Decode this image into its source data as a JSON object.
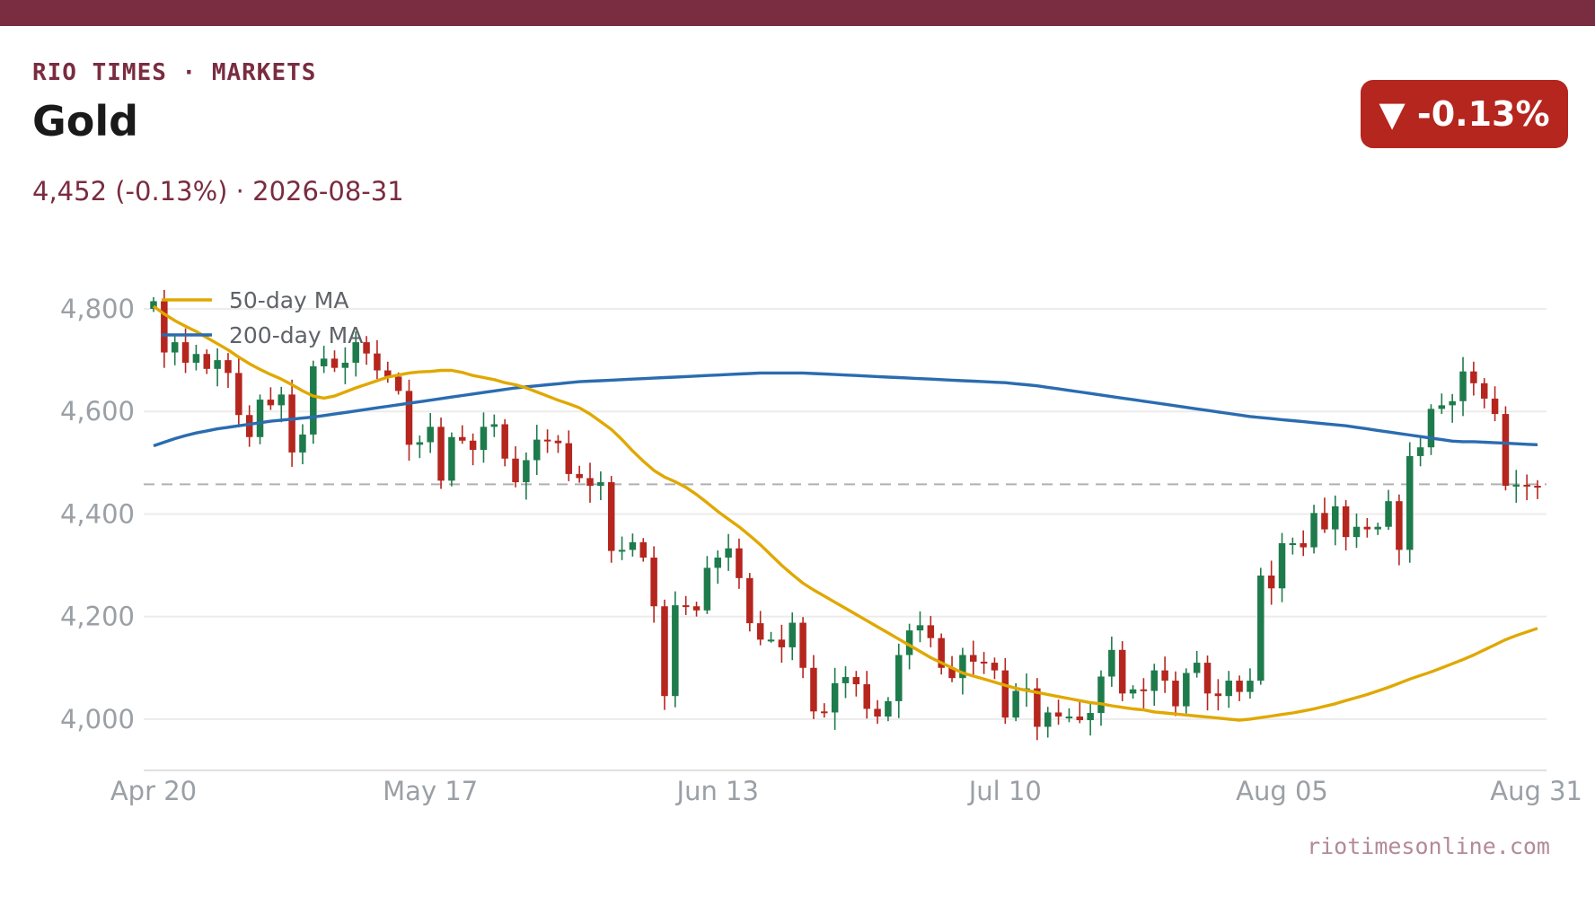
{
  "header": {
    "brand": "RIO TIMES · MARKETS",
    "title": "Gold",
    "subtitle": "4,452 (-0.13%)  ·  2026-08-31",
    "badge": "▼ -0.13%",
    "badge_color": "#b5261e",
    "accent_color": "#7a2c40"
  },
  "footer": {
    "source": "riotimesonline.com"
  },
  "chart_data": {
    "type": "candlestick",
    "x_ticks": [
      "Apr 20",
      "May 17",
      "Jun 13",
      "Jul 10",
      "Aug 05",
      "Aug 31"
    ],
    "y_ticks": [
      "4,000",
      "4,200",
      "4,400",
      "4,600",
      "4,800"
    ],
    "y_tick_values": [
      4000,
      4200,
      4400,
      4600,
      4800
    ],
    "ylim": [
      3900,
      4800
    ],
    "grid": true,
    "legend_position": "top-left",
    "legend": [
      {
        "name": "50-day MA",
        "color": "#e0a800"
      },
      {
        "name": "200-day MA",
        "color": "#2b6cb0"
      }
    ],
    "up_color": "#1e7b4c",
    "down_color": "#b5261e",
    "reference_line": 4458,
    "closes": [
      4815,
      4715,
      4735,
      4695,
      4712,
      4683,
      4700,
      4675,
      4593,
      4550,
      4623,
      4612,
      4633,
      4520,
      4555,
      4688,
      4703,
      4685,
      4695,
      4735,
      4713,
      4680,
      4668,
      4640,
      4535,
      4540,
      4570,
      4465,
      4550,
      4543,
      4525,
      4570,
      4575,
      4508,
      4462,
      4505,
      4545,
      4543,
      4538,
      4478,
      4470,
      4455,
      4462,
      4328,
      4330,
      4345,
      4315,
      4220,
      4045,
      4222,
      4220,
      4212,
      4295,
      4315,
      4333,
      4275,
      4187,
      4155,
      4155,
      4140,
      4188,
      4100,
      4015,
      4013,
      4070,
      4082,
      4068,
      4020,
      4005,
      4035,
      4125,
      4173,
      4183,
      4158,
      4100,
      4080,
      4125,
      4112,
      4110,
      4095,
      4003,
      4055,
      4060,
      3985,
      4013,
      4005,
      4005,
      3998,
      4012,
      4083,
      4135,
      4050,
      4058,
      4055,
      4095,
      4075,
      4025,
      4090,
      4110,
      4050,
      4045,
      4075,
      4053,
      4075,
      4280,
      4255,
      4343,
      4343,
      4335,
      4402,
      4370,
      4415,
      4355,
      4375,
      4370,
      4375,
      4425,
      4330,
      4513,
      4530,
      4605,
      4612,
      4620,
      4678,
      4655,
      4625,
      4595,
      4455,
      4457,
      4455,
      4452
    ],
    "ma50": [
      4805,
      4790,
      4777,
      4766,
      4756,
      4744,
      4732,
      4720,
      4706,
      4693,
      4682,
      4672,
      4663,
      4652,
      4640,
      4630,
      4626,
      4630,
      4638,
      4646,
      4653,
      4660,
      4667,
      4671,
      4675,
      4677,
      4678,
      4680,
      4680,
      4676,
      4670,
      4666,
      4662,
      4656,
      4652,
      4646,
      4638,
      4630,
      4622,
      4615,
      4607,
      4595,
      4580,
      4565,
      4545,
      4523,
      4503,
      4485,
      4472,
      4463,
      4452,
      4438,
      4422,
      4405,
      4390,
      4375,
      4358,
      4340,
      4320,
      4300,
      4282,
      4265,
      4252,
      4240,
      4228,
      4216,
      4204,
      4192,
      4180,
      4168,
      4156,
      4144,
      4132,
      4120,
      4110,
      4100,
      4090,
      4084,
      4078,
      4072,
      4066,
      4060,
      4056,
      4052,
      4048,
      4044,
      4040,
      4036,
      4032,
      4030,
      4026,
      4023,
      4020,
      4018,
      4014,
      4012,
      4010,
      4008,
      4006,
      4004,
      4002,
      4000,
      3998,
      4000,
      4003,
      4006,
      4009,
      4012,
      4016,
      4020,
      4025,
      4030,
      4036,
      4042,
      4048,
      4055,
      4062,
      4070,
      4078,
      4085,
      4092,
      4100,
      4108,
      4116,
      4125,
      4135,
      4145,
      4155,
      4163,
      4170,
      4177
    ],
    "ma200": [
      4533,
      4540,
      4547,
      4553,
      4558,
      4562,
      4566,
      4569,
      4572,
      4575,
      4578,
      4581,
      4583,
      4585,
      4587,
      4589,
      4592,
      4595,
      4598,
      4601,
      4604,
      4607,
      4610,
      4613,
      4616,
      4619,
      4622,
      4625,
      4628,
      4631,
      4634,
      4637,
      4640,
      4643,
      4646,
      4648,
      4650,
      4652,
      4654,
      4656,
      4658,
      4659,
      4660,
      4661,
      4662,
      4663,
      4664,
      4665,
      4666,
      4667,
      4668,
      4669,
      4670,
      4671,
      4672,
      4673,
      4674,
      4675,
      4675,
      4675,
      4675,
      4675,
      4674,
      4673,
      4672,
      4671,
      4670,
      4669,
      4668,
      4667,
      4666,
      4665,
      4664,
      4663,
      4662,
      4661,
      4660,
      4659,
      4658,
      4657,
      4656,
      4654,
      4652,
      4650,
      4647,
      4644,
      4641,
      4638,
      4635,
      4632,
      4629,
      4626,
      4623,
      4620,
      4617,
      4614,
      4611,
      4608,
      4605,
      4602,
      4599,
      4596,
      4593,
      4590,
      4588,
      4586,
      4584,
      4582,
      4580,
      4578,
      4576,
      4574,
      4572,
      4569,
      4566,
      4563,
      4560,
      4557,
      4554,
      4551,
      4548,
      4545,
      4542,
      4541,
      4541,
      4540,
      4539,
      4538,
      4537,
      4536,
      4535
    ]
  }
}
